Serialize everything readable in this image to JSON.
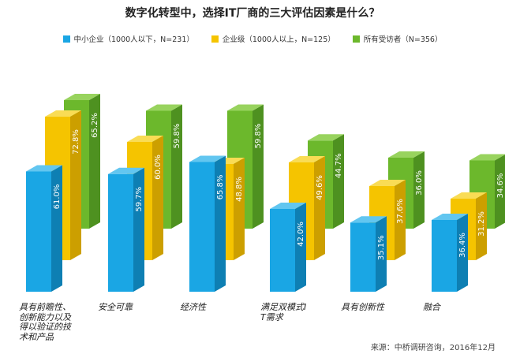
{
  "colors": {
    "series": [
      "#1aa6e4",
      "#f5c400",
      "#6cb82c"
    ],
    "series_side": [
      "#0e7fb3",
      "#cc9f00",
      "#4e9120"
    ],
    "series_top": [
      "#62c6f0",
      "#f9dc55",
      "#98d35e"
    ]
  },
  "chart_data": {
    "type": "bar",
    "title": "数字化转型中，选择IT厂商的三大评估因素是什么？",
    "categories": [
      "具有前瞻性、创新能力以及得以验证的技术和产品",
      "安全可靠",
      "经济性",
      "满足双模式IT需求",
      "具有创新性",
      "融合"
    ],
    "series": [
      {
        "name": "中小企业（1000人以下，N=231）",
        "values": [
          61.0,
          59.7,
          65.8,
          42.0,
          35.1,
          36.4
        ]
      },
      {
        "name": "企业级（1000人以上，N=125）",
        "values": [
          72.8,
          60.0,
          48.8,
          49.6,
          37.6,
          31.2
        ]
      },
      {
        "name": "所有受访者（N=356）",
        "values": [
          65.2,
          59.8,
          59.8,
          44.7,
          36.0,
          34.6
        ]
      }
    ],
    "value_labels": [
      [
        "61.0%",
        "59.7%",
        "65.8%",
        "42.0%",
        "35.1%",
        "36.4%"
      ],
      [
        "72.8%",
        "60.0%",
        "48.8%",
        "49.6%",
        "37.6%",
        "31.2%"
      ],
      [
        "65.2%",
        "59.8%",
        "59.8%",
        "44.7%",
        "36.0%",
        "34.6%"
      ]
    ],
    "xlabel": "",
    "ylabel": "",
    "grid": false,
    "legend": "top"
  },
  "source": "来源：中桥调研咨询，2016年12月",
  "watermark": "中桥调研咨询"
}
